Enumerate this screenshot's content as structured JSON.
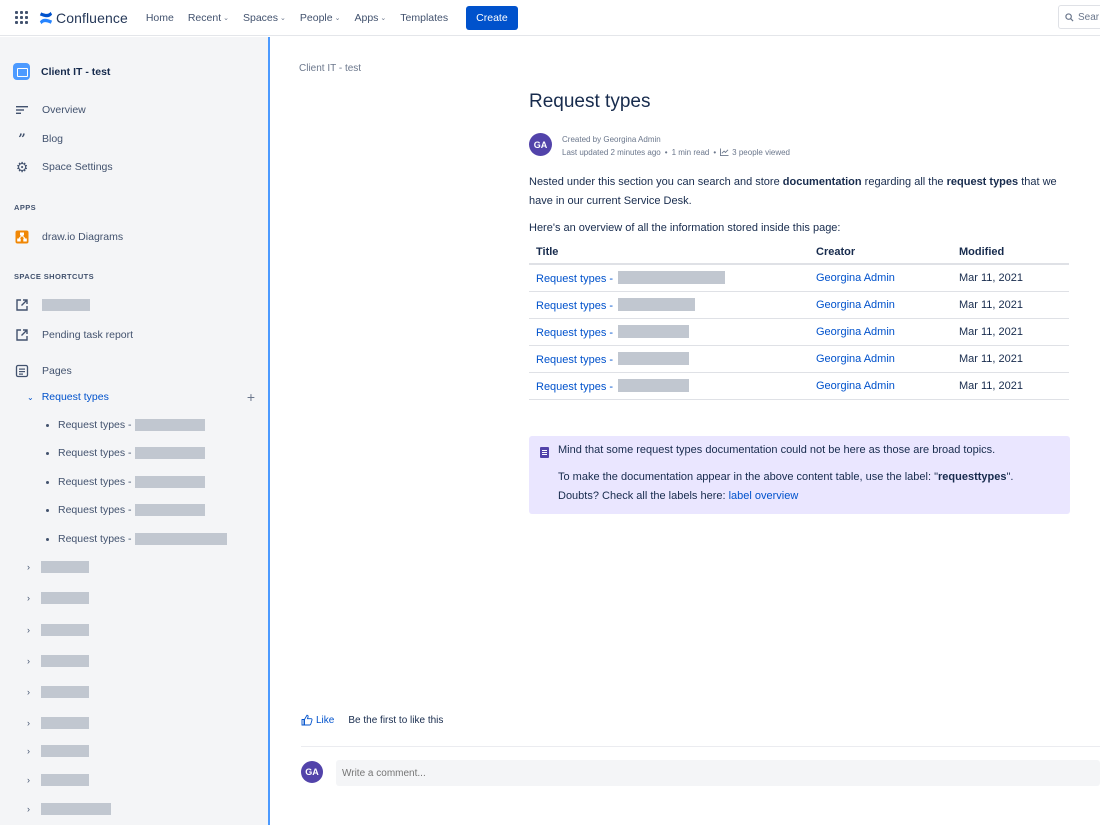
{
  "topbar": {
    "logo_text": "Confluence",
    "nav": [
      {
        "label": "Home",
        "dropdown": false
      },
      {
        "label": "Recent",
        "dropdown": true
      },
      {
        "label": "Spaces",
        "dropdown": true
      },
      {
        "label": "People",
        "dropdown": true
      },
      {
        "label": "Apps",
        "dropdown": true
      },
      {
        "label": "Templates",
        "dropdown": false
      }
    ],
    "create_label": "Create",
    "search_placeholder": "Sear"
  },
  "sidebar": {
    "space_title": "Client IT - test",
    "items": [
      {
        "label": "Overview",
        "icon": "overview-icon"
      },
      {
        "label": "Blog",
        "icon": "quote-icon"
      },
      {
        "label": "Space Settings",
        "icon": "gear-icon"
      }
    ],
    "apps_heading": "APPS",
    "apps": [
      {
        "label": "draw.io Diagrams",
        "icon": "drawio-icon"
      }
    ],
    "shortcuts_heading": "SPACE SHORTCUTS",
    "shortcuts": [
      {
        "label": "",
        "redacted": true
      },
      {
        "label": "Pending task report",
        "redacted": false
      }
    ],
    "pages_label": "Pages",
    "active_page": "Request types",
    "child_pages": [
      {
        "label": "Request types -"
      },
      {
        "label": "Request types -"
      },
      {
        "label": "Request types -"
      },
      {
        "label": "Request types -"
      },
      {
        "label": "Request types -"
      }
    ]
  },
  "main": {
    "breadcrumb": "Client IT - test",
    "title": "Request types",
    "author_initials": "GA",
    "created_by": "Created by Georgina Admin",
    "last_updated": "Last updated 2 minutes ago",
    "read_time": "1 min read",
    "views": "3 people viewed",
    "intro_1": "Nested under this section you can search and store ",
    "intro_bold_1": "documentation",
    "intro_2": " regarding all the ",
    "intro_bold_2": "request types",
    "intro_3": " that we have in our current Service Desk.",
    "overview_text": "Here's an overview of all the information stored inside this page:",
    "table": {
      "headers": [
        "Title",
        "Creator",
        "Modified"
      ],
      "rows": [
        {
          "title": "Request types -",
          "creator": "Georgina Admin",
          "modified": "Mar 11, 2021"
        },
        {
          "title": "Request types -",
          "creator": "Georgina Admin",
          "modified": "Mar 11, 2021"
        },
        {
          "title": "Request types -",
          "creator": "Georgina Admin",
          "modified": "Mar 11, 2021"
        },
        {
          "title": "Request types -",
          "creator": "Georgina Admin",
          "modified": "Mar 11, 2021"
        },
        {
          "title": "Request types -",
          "creator": "Georgina Admin",
          "modified": "Mar 11, 2021"
        }
      ]
    },
    "note": {
      "line1": "Mind that some request types documentation could not be here as those are broad topics.",
      "line2_prefix": "To make the documentation appear in the above content table, use the label: \"",
      "line2_label": "requesttypes",
      "line2_suffix": "\".",
      "line3_prefix": "Doubts? Check all the labels here: ",
      "line3_link": "label overview"
    },
    "like_label": "Like",
    "like_text": "Be the first to like this",
    "comment_placeholder": "Write a comment..."
  },
  "colors": {
    "accent": "#0052cc",
    "sidebar_border": "#4c9aff",
    "avatar": "#5243aa",
    "note_bg": "#eae6ff"
  }
}
